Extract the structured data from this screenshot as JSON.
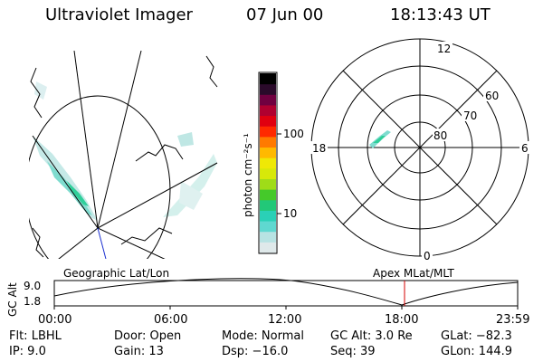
{
  "header": {
    "app_title": "Ultraviolet Imager",
    "date": "07 Jun 00",
    "time": "18:13:43 UT"
  },
  "colorbar": {
    "label": "photon cm⁻²s⁻¹",
    "tick_labels": [
      "100",
      "10"
    ],
    "colors": [
      "#dfe9ea",
      "#b7e3e3",
      "#5fd8d0",
      "#2ad0b6",
      "#22c878",
      "#45c92a",
      "#9fdc18",
      "#d7e80a",
      "#efe806",
      "#ffb900",
      "#ff7a00",
      "#ff2a00",
      "#e00010",
      "#b00030",
      "#700040",
      "#2a0a2a",
      "#000000"
    ]
  },
  "polar_plot": {
    "mlt_labels": [
      "12",
      "18",
      "6",
      "0"
    ],
    "lat_labels": [
      "60",
      "70",
      "80"
    ]
  },
  "timeline": {
    "left_caption": "Geographic Lat/Lon",
    "right_caption": "Apex MLat/MLT",
    "axis_title": "GC Alt",
    "y_tick_labels": [
      "9.0",
      "1.8"
    ],
    "x_tick_labels": [
      "00:00",
      "06:00",
      "12:00",
      "18:00",
      "23:59"
    ],
    "marker_color": "#d40000"
  },
  "footer": {
    "row1": [
      "Flt: LBHL",
      "Door: Open",
      "Mode: Normal",
      "GC Alt: 3.0 Re",
      "GLat: −82.3"
    ],
    "row2": [
      "IP: 9.0",
      "Gain: 13",
      "Dsp: −16.0",
      "Seq: 39",
      "GLon: 144.9"
    ]
  }
}
